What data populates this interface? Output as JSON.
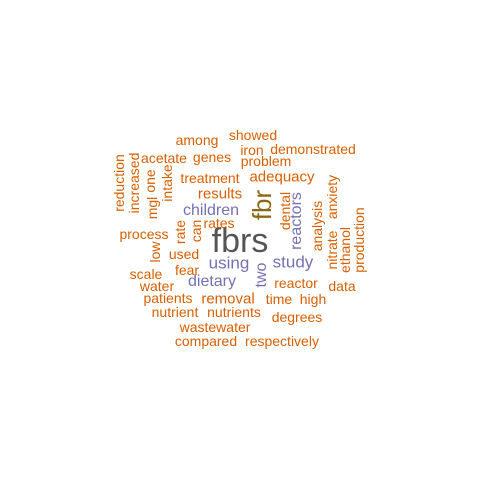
{
  "colors": {
    "orange": "#d95f02",
    "purple": "#7570b3",
    "olive": "#8b6914",
    "dark": "#555555"
  },
  "words": [
    {
      "text": "fbrs",
      "color": "dark"
    },
    {
      "text": "fbr",
      "color": "olive"
    },
    {
      "text": "children",
      "color": "purple"
    },
    {
      "text": "using",
      "color": "purple"
    },
    {
      "text": "study",
      "color": "purple"
    },
    {
      "text": "dietary",
      "color": "purple"
    },
    {
      "text": "two",
      "color": "purple"
    },
    {
      "text": "reactors",
      "color": "purple"
    },
    {
      "text": "among",
      "color": "orange"
    },
    {
      "text": "showed",
      "color": "orange"
    },
    {
      "text": "iron",
      "color": "orange"
    },
    {
      "text": "demonstrated",
      "color": "orange"
    },
    {
      "text": "acetate",
      "color": "orange"
    },
    {
      "text": "genes",
      "color": "orange"
    },
    {
      "text": "problem",
      "color": "orange"
    },
    {
      "text": "reduction",
      "color": "orange"
    },
    {
      "text": "increased",
      "color": "orange"
    },
    {
      "text": "one",
      "color": "orange"
    },
    {
      "text": "intake",
      "color": "orange"
    },
    {
      "text": "treatment",
      "color": "orange"
    },
    {
      "text": "adequacy",
      "color": "orange"
    },
    {
      "text": "results",
      "color": "orange"
    },
    {
      "text": "anxiety",
      "color": "orange"
    },
    {
      "text": "mgl",
      "color": "orange"
    },
    {
      "text": "dental",
      "color": "orange"
    },
    {
      "text": "analysis",
      "color": "orange"
    },
    {
      "text": "rates",
      "color": "orange"
    },
    {
      "text": "can",
      "color": "orange"
    },
    {
      "text": "production",
      "color": "orange"
    },
    {
      "text": "process",
      "color": "orange"
    },
    {
      "text": "rate",
      "color": "orange"
    },
    {
      "text": "low",
      "color": "orange"
    },
    {
      "text": "nitrate",
      "color": "orange"
    },
    {
      "text": "ethanol",
      "color": "orange"
    },
    {
      "text": "used",
      "color": "orange"
    },
    {
      "text": "fear",
      "color": "orange"
    },
    {
      "text": "scale",
      "color": "orange"
    },
    {
      "text": "water",
      "color": "orange"
    },
    {
      "text": "reactor",
      "color": "orange"
    },
    {
      "text": "data",
      "color": "orange"
    },
    {
      "text": "patients",
      "color": "orange"
    },
    {
      "text": "removal",
      "color": "orange"
    },
    {
      "text": "time",
      "color": "orange"
    },
    {
      "text": "high",
      "color": "orange"
    },
    {
      "text": "nutrient",
      "color": "orange"
    },
    {
      "text": "nutrients",
      "color": "orange"
    },
    {
      "text": "degrees",
      "color": "orange"
    },
    {
      "text": "wastewater",
      "color": "orange"
    },
    {
      "text": "compared",
      "color": "orange"
    },
    {
      "text": "respectively",
      "color": "orange"
    }
  ]
}
